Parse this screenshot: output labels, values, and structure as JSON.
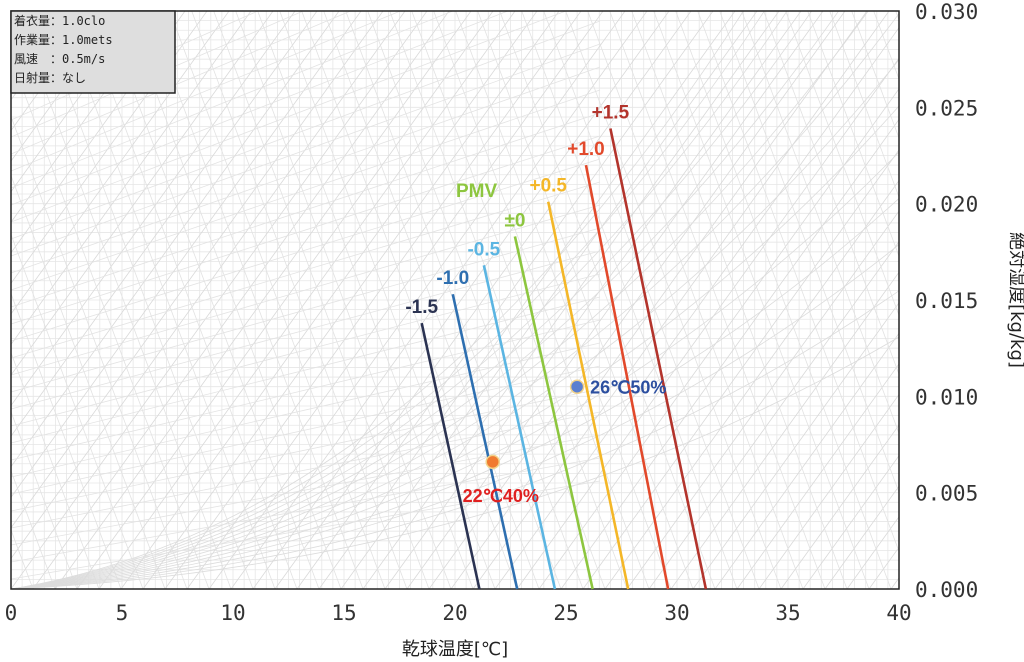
{
  "chart_data": {
    "type": "line",
    "xlabel": "乾球温度[℃]",
    "ylabel": "絶対湿度[kg/kg]",
    "xlim": [
      0,
      40
    ],
    "ylim": [
      0,
      0.03
    ],
    "x_ticks": [
      "0",
      "5",
      "10",
      "15",
      "20",
      "25",
      "30",
      "35",
      "40"
    ],
    "y_ticks": [
      "0.000",
      "0.005",
      "0.010",
      "0.015",
      "0.020",
      "0.025",
      "0.030"
    ],
    "conditions": [
      "着衣量：1.0clo",
      "作業量：1.0mets",
      "風速　：0.5m/s",
      "日射量：なし"
    ],
    "pmv_title": "PMV",
    "pmv_title_color": "#8dc63f",
    "series": [
      {
        "name": "-1.5",
        "color": "#2b3352",
        "x": [
          21.1,
          18.5
        ],
        "y": [
          0.0,
          0.0138
        ]
      },
      {
        "name": "-1.0",
        "color": "#2e6fb0",
        "x": [
          22.8,
          19.9
        ],
        "y": [
          0.0,
          0.0153
        ]
      },
      {
        "name": "-0.5",
        "color": "#5bb5e2",
        "x": [
          24.5,
          21.3
        ],
        "y": [
          0.0,
          0.0168
        ]
      },
      {
        "name": "±0",
        "color": "#8dc63f",
        "x": [
          26.2,
          22.7
        ],
        "y": [
          0.0,
          0.0183
        ]
      },
      {
        "name": "+0.5",
        "color": "#f4b728",
        "x": [
          27.8,
          24.2
        ],
        "y": [
          0.0,
          0.0201
        ]
      },
      {
        "name": "+1.0",
        "color": "#e2492b",
        "x": [
          29.6,
          25.9
        ],
        "y": [
          0.0,
          0.022
        ]
      },
      {
        "name": "+1.5",
        "color": "#b3342c",
        "x": [
          31.3,
          27.0
        ],
        "y": [
          0.0,
          0.0239
        ]
      }
    ],
    "points": [
      {
        "label": "26℃50%",
        "x": 25.5,
        "y": 0.0105,
        "color": "#5a7fd0",
        "text_color": "#2c4fa0"
      },
      {
        "label": "22℃40%",
        "x": 21.7,
        "y": 0.0066,
        "color": "#f07a30",
        "text_color": "#e02020"
      }
    ]
  }
}
